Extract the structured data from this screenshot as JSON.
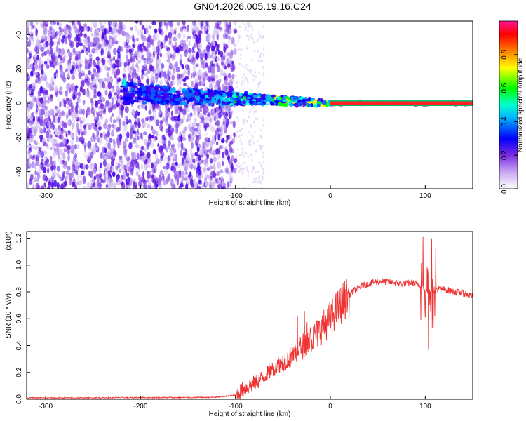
{
  "title": "GN04.2026.005.19.16.C24",
  "chart_data": [
    {
      "type": "heatmap",
      "xlabel": "Height of straight line (km)",
      "ylabel": "Frequency (Hz)",
      "xlim": [
        -320,
        150
      ],
      "ylim": [
        -50,
        48
      ],
      "x_ticks": [
        -300,
        -200,
        -100,
        0,
        100
      ],
      "y_ticks": [
        40,
        20,
        0,
        -20,
        -40
      ],
      "colorbar": {
        "label": "Normalized spectral amplitude",
        "range": [
          0,
          1
        ],
        "ticks": [
          "0.0",
          "0.2",
          "0.4",
          "0.6",
          "0.8"
        ],
        "colors": [
          "#ffffff",
          "#8a2be2",
          "#0000ff",
          "#00ffff",
          "#00ff00",
          "#ffff00",
          "#ff7f00",
          "#ff0000",
          "#ff1493"
        ]
      },
      "features": {
        "noise_region_x": [
          -320,
          -100
        ],
        "sparse_noise_x": [
          -100,
          -70
        ],
        "signal_onset_x": -220,
        "steady_line_start_x": 0,
        "steady_line_freq": 0,
        "steady_line_amplitude": 0.95
      },
      "grid": false
    },
    {
      "type": "line",
      "xlabel": "Height of straight line (km)",
      "ylabel": "SNR (10 * v/v)",
      "yscale_label": "(x10⁴)",
      "xlim": [
        -320,
        150
      ],
      "ylim": [
        0,
        1.25
      ],
      "x_ticks": [
        -300,
        -200,
        -100,
        0,
        100
      ],
      "y_ticks": [
        "0.0",
        "0.2",
        "0.4",
        "0.6",
        "0.8",
        "1.0",
        "1.2"
      ],
      "color": "#ee3333",
      "series": [
        {
          "x": [
            -320,
            -260,
            -220,
            -200,
            -150,
            -120,
            -100,
            -95,
            -85,
            -75,
            -65,
            -55,
            -45,
            -35,
            -25,
            -15,
            -5,
            5,
            15,
            25,
            35,
            45,
            55,
            65,
            75,
            85,
            95,
            100,
            105,
            110,
            120,
            130,
            140,
            150
          ],
          "values": [
            0.01,
            0.01,
            0.012,
            0.012,
            0.013,
            0.015,
            0.03,
            0.06,
            0.1,
            0.14,
            0.2,
            0.26,
            0.3,
            0.36,
            0.42,
            0.48,
            0.56,
            0.65,
            0.74,
            0.81,
            0.85,
            0.87,
            0.88,
            0.87,
            0.86,
            0.87,
            0.85,
            0.82,
            0.8,
            0.82,
            0.82,
            0.8,
            0.79,
            0.77
          ]
        }
      ],
      "grid": false
    }
  ]
}
